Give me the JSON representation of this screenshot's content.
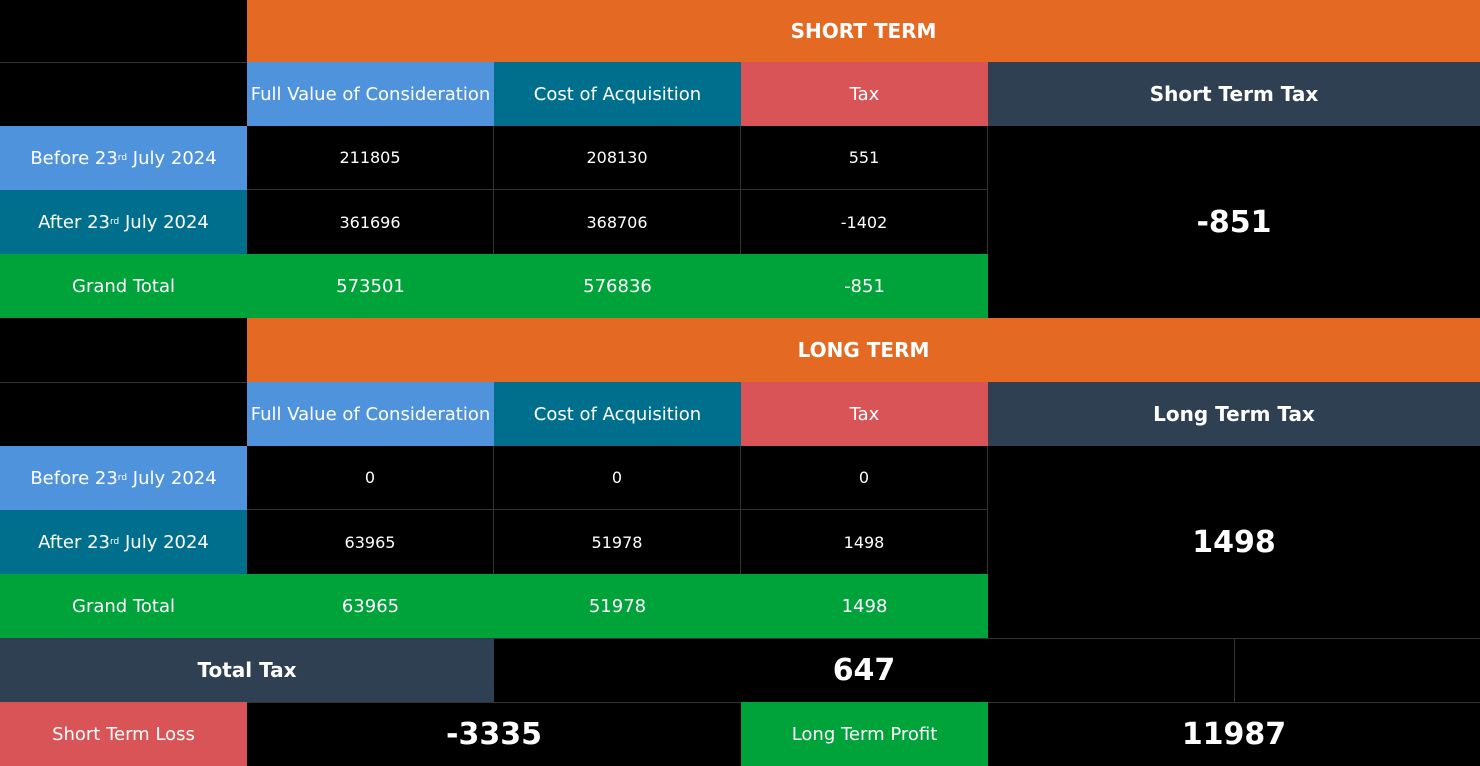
{
  "short_term": {
    "title": "SHORT TERM",
    "headers": {
      "fvc": "Full Value of Consideration",
      "coa": "Cost of Acquisition",
      "tax": "Tax",
      "summary": "Short Term Tax"
    },
    "rows": [
      {
        "label_pre": "Before 23",
        "label_sup": "rd",
        "label_post": " July 2024",
        "fvc": "211805",
        "coa": "208130",
        "tax": "551"
      },
      {
        "label_pre": "After 23",
        "label_sup": "rd",
        "label_post": " July 2024",
        "fvc": "361696",
        "coa": "368706",
        "tax": "-1402"
      }
    ],
    "total": {
      "label": "Grand Total",
      "fvc": "573501",
      "coa": "576836",
      "tax": "-851"
    },
    "summary_value": "-851"
  },
  "long_term": {
    "title": "LONG TERM",
    "headers": {
      "fvc": "Full Value of Consideration",
      "coa": "Cost of Acquisition",
      "tax": "Tax",
      "summary": "Long Term Tax"
    },
    "rows": [
      {
        "label_pre": "Before 23",
        "label_sup": "rd",
        "label_post": " July 2024",
        "fvc": "0",
        "coa": "0",
        "tax": "0"
      },
      {
        "label_pre": "After 23",
        "label_sup": "rd",
        "label_post": " July 2024",
        "fvc": "63965",
        "coa": "51978",
        "tax": "1498"
      }
    ],
    "total": {
      "label": "Grand Total",
      "fvc": "63965",
      "coa": "51978",
      "tax": "1498"
    },
    "summary_value": "1498"
  },
  "total_tax": {
    "label": "Total Tax",
    "value": "647"
  },
  "footer": {
    "short_loss_label": "Short Term Loss",
    "short_loss_value": "-3335",
    "long_profit_label": "Long Term Profit",
    "long_profit_value": "11987"
  },
  "colors": {
    "orange": "#e46a24",
    "light_blue": "#4f93dd",
    "teal": "#006f8e",
    "red": "#d95456",
    "slate": "#2e4052",
    "green": "#00a33a"
  }
}
